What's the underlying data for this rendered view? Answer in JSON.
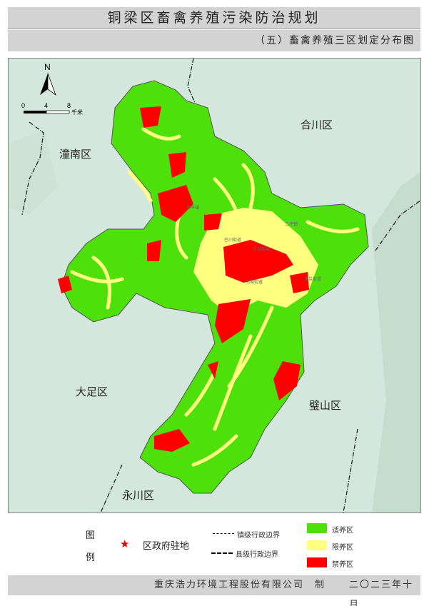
{
  "header": {
    "title": "铜梁区畜禽养殖污染防治规划",
    "subtitle": "（五）畜禽养殖三区划定分布图"
  },
  "map": {
    "north_label": "N",
    "scale": {
      "ticks": [
        "0",
        "4",
        "8"
      ],
      "unit": "千米"
    },
    "neighbors": [
      "潼南区",
      "合川区",
      "大足区",
      "璧山区",
      "永川区"
    ],
    "towns": [
      "巴川街道",
      "东城街道",
      "南城街道",
      "蒲吕街道",
      "二坪镇",
      "太平镇"
    ],
    "colors": {
      "suitable": "#4ee00a",
      "restricted": "#ffff80",
      "prohibited": "#ff0000",
      "background": "#d4e7dc"
    }
  },
  "legend": {
    "title_1": "图",
    "title_2": "例",
    "seat": "区政府驻地",
    "town_boundary": "镇级行政边界",
    "county_boundary": "县级行政边界",
    "zones": [
      {
        "label": "适养区",
        "color": "#4ee00a"
      },
      {
        "label": "限养区",
        "color": "#ffff80"
      },
      {
        "label": "禁养区",
        "color": "#ff0000"
      }
    ]
  },
  "footer": {
    "maker": "重庆浩力环境工程股份有限公司",
    "made": "制",
    "date": "二〇二三年十月"
  }
}
